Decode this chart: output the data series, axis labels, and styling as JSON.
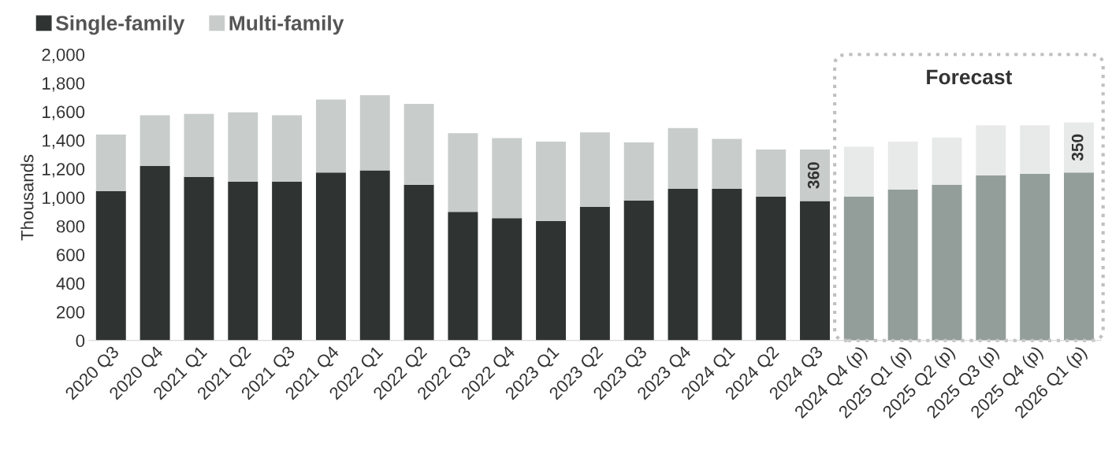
{
  "chart_data": {
    "type": "bar",
    "stacked": true,
    "ylabel": "Thousands",
    "categories": [
      "2020 Q3",
      "2020 Q4",
      "2021 Q1",
      "2021 Q2",
      "2021 Q3",
      "2021 Q4",
      "2022 Q1",
      "2022 Q2",
      "2022 Q3",
      "2022 Q4",
      "2023 Q1",
      "2023 Q2",
      "2023 Q3",
      "2023 Q4",
      "2024 Q1",
      "2024 Q2",
      "2024 Q3",
      "2024 Q4 (p)",
      "2025 Q1 (p)",
      "2025 Q2 (p)",
      "2025 Q3 (p)",
      "2025 Q4 (p)",
      "2026 Q1 (p)"
    ],
    "series": [
      {
        "name": "Single-family",
        "color": "#2f3432",
        "colors": [
          "#2f3432",
          "#2f3432",
          "#2f3432",
          "#2f3432",
          "#2f3432",
          "#2f3432",
          "#2f3432",
          "#2f3432",
          "#2f3432",
          "#2f3432",
          "#2f3432",
          "#2f3432",
          "#2f3432",
          "#2f3432",
          "#2f3432",
          "#2f3432",
          "#2f3432",
          "#939e9a",
          "#939e9a",
          "#939e9a",
          "#939e9a",
          "#939e9a",
          "#939e9a"
        ],
        "values": [
          1045,
          1220,
          1145,
          1110,
          1110,
          1175,
          1190,
          1090,
          900,
          855,
          835,
          935,
          980,
          1060,
          1060,
          1005,
          975,
          1005,
          1055,
          1090,
          1155,
          1165,
          1175
        ]
      },
      {
        "name": "Multi-family",
        "color": "#c8cdcb",
        "colors": [
          "#c8cdcb",
          "#c8cdcb",
          "#c8cdcb",
          "#c8cdcb",
          "#c8cdcb",
          "#c8cdcb",
          "#c8cdcb",
          "#c8cdcb",
          "#c8cdcb",
          "#c8cdcb",
          "#c8cdcb",
          "#c8cdcb",
          "#c8cdcb",
          "#c8cdcb",
          "#c8cdcb",
          "#c8cdcb",
          "#c8cdcb",
          "#e8eae9",
          "#e8eae9",
          "#e8eae9",
          "#e8eae9",
          "#e8eae9",
          "#e8eae9"
        ],
        "values": [
          395,
          355,
          440,
          485,
          465,
          510,
          525,
          565,
          550,
          560,
          555,
          520,
          405,
          425,
          350,
          330,
          360,
          350,
          335,
          330,
          350,
          340,
          350
        ],
        "value_labels": [
          null,
          null,
          null,
          null,
          null,
          null,
          null,
          null,
          null,
          null,
          null,
          null,
          null,
          null,
          null,
          null,
          "360",
          null,
          null,
          null,
          null,
          null,
          "350"
        ]
      }
    ],
    "ylim": [
      0,
      2000
    ],
    "yticks": [
      0,
      {
        "value": 200,
        "label": "200"
      },
      {
        "value": 400,
        "label": "400"
      },
      {
        "value": 600,
        "label": "600"
      },
      {
        "value": 800,
        "label": "800"
      },
      {
        "value": 1000,
        "label": "1,000"
      },
      {
        "value": 1200,
        "label": "1,200"
      },
      {
        "value": 1400,
        "label": "1,400"
      },
      {
        "value": 1600,
        "label": "1,600"
      },
      {
        "value": 1800,
        "label": "1,800"
      },
      {
        "value": 2000,
        "label": "2,000"
      }
    ],
    "annotations": [
      "Forecast"
    ],
    "grid": false,
    "legend": "top left"
  }
}
